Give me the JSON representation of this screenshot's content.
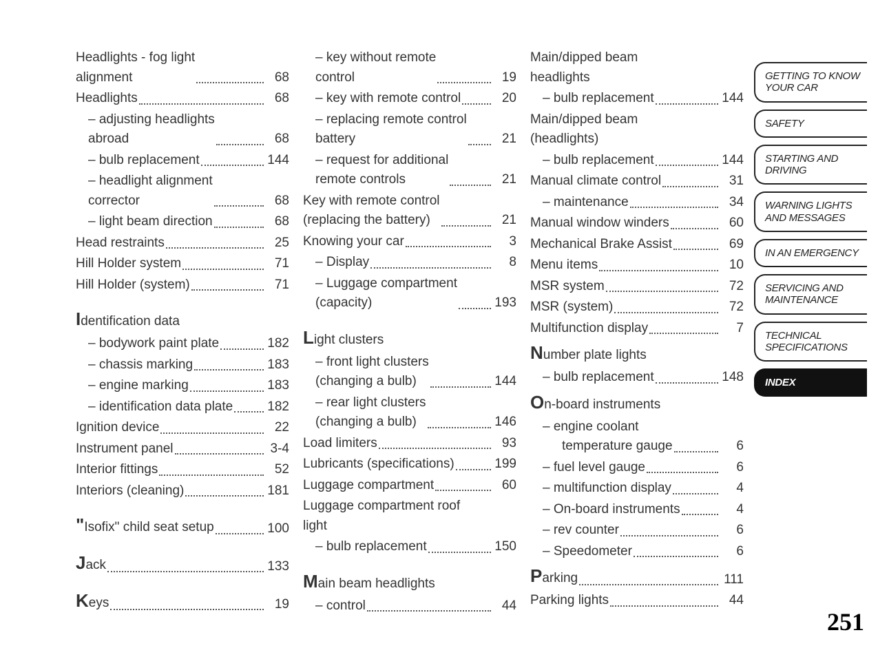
{
  "page_number": "251",
  "tabs": [
    {
      "label": "GETTING TO KNOW YOUR CAR",
      "active": false
    },
    {
      "label": "SAFETY",
      "active": false
    },
    {
      "label": "STARTING AND DRIVING",
      "active": false
    },
    {
      "label": "WARNING LIGHTS AND MESSAGES",
      "active": false
    },
    {
      "label": "IN AN EMERGENCY",
      "active": false
    },
    {
      "label": "SERVICING AND MAINTENANCE",
      "active": false
    },
    {
      "label": "TECHNICAL SPECIFICATIONS",
      "active": false
    },
    {
      "label": "INDEX",
      "active": true
    }
  ],
  "col1": [
    {
      "label": "Headlights - fog light\nalignment",
      "page": "68",
      "indent": 0
    },
    {
      "label": "Headlights",
      "page": "68",
      "indent": 0
    },
    {
      "label": "– adjusting headlights\nabroad",
      "page": "68",
      "indent": 1
    },
    {
      "label": "– bulb replacement",
      "page": "144",
      "indent": 1
    },
    {
      "label": "– headlight alignment\ncorrector",
      "page": "68",
      "indent": 1
    },
    {
      "label": "– light beam direction",
      "page": "68",
      "indent": 1
    },
    {
      "label": "Head restraints",
      "page": "25",
      "indent": 0
    },
    {
      "label": "Hill Holder system",
      "page": "71",
      "indent": 0
    },
    {
      "label": "Hill Holder (system)",
      "page": "71",
      "indent": 0
    },
    {
      "spacer": true
    },
    {
      "bigLetter": "I",
      "rest": "dentification data",
      "heading": true
    },
    {
      "label": "– bodywork paint plate",
      "page": "182",
      "indent": 1
    },
    {
      "label": "– chassis marking",
      "page": "183",
      "indent": 1
    },
    {
      "label": "– engine marking",
      "page": "183",
      "indent": 1
    },
    {
      "label": "– identification data plate",
      "page": "182",
      "indent": 1
    },
    {
      "label": "Ignition device",
      "page": "22",
      "indent": 0
    },
    {
      "label": "Instrument panel",
      "page": "3-4",
      "indent": 0
    },
    {
      "label": "Interior fittings",
      "page": "52",
      "indent": 0
    },
    {
      "label": "Interiors (cleaning)",
      "page": "181",
      "indent": 0
    },
    {
      "spacer": true
    },
    {
      "bigLetter": "\"",
      "rest": "Isofix\" child seat setup",
      "page": "100",
      "indent": 0
    },
    {
      "spacer": true
    },
    {
      "bigLetter": "J",
      "rest": "ack",
      "page": "133",
      "indent": 0
    },
    {
      "spacer": true
    },
    {
      "bigLetter": "K",
      "rest": "eys",
      "page": "19",
      "indent": 0,
      "noDots": true
    }
  ],
  "col2": [
    {
      "label": "– key without remote\ncontrol",
      "page": "19",
      "indent": 1
    },
    {
      "label": "– key with remote control",
      "page": "20",
      "indent": 1
    },
    {
      "label": "– replacing remote control\nbattery",
      "page": "21",
      "indent": 1
    },
    {
      "label": "– request for additional\nremote controls",
      "page": "21",
      "indent": 1
    },
    {
      "label": "Key with remote control\n(replacing the battery)",
      "page": "21",
      "indent": 0
    },
    {
      "label": "Knowing your car",
      "page": "3",
      "indent": 0
    },
    {
      "label": "– Display",
      "page": "8",
      "indent": 1
    },
    {
      "label": "– Luggage compartment\n(capacity)",
      "page": "193",
      "indent": 1
    },
    {
      "spacer": true
    },
    {
      "bigLetter": "L",
      "rest": "ight clusters",
      "heading": true
    },
    {
      "label": "– front light clusters\n(changing a bulb)",
      "page": "144",
      "indent": 1
    },
    {
      "label": "– rear light clusters\n(changing a bulb)",
      "page": "146",
      "indent": 1
    },
    {
      "label": "Load limiters",
      "page": "93",
      "indent": 0
    },
    {
      "label": "Lubricants (specifications)",
      "page": "199",
      "indent": 0
    },
    {
      "label": "Luggage compartment",
      "page": "60",
      "indent": 0
    },
    {
      "label": "Luggage compartment roof\nlight",
      "heading": true,
      "indent": 0
    },
    {
      "label": "– bulb replacement",
      "page": "150",
      "indent": 1
    },
    {
      "spacer": true
    },
    {
      "bigLetter": "M",
      "rest": "ain beam headlights",
      "heading": true
    },
    {
      "label": "– control",
      "page": "44",
      "indent": 1
    }
  ],
  "col3": [
    {
      "label": "Main/dipped beam\nheadlights",
      "heading": true,
      "indent": 0
    },
    {
      "label": "– bulb replacement",
      "page": "144",
      "indent": 1
    },
    {
      "label": "Main/dipped beam\n(headlights)",
      "heading": true,
      "indent": 0
    },
    {
      "label": "– bulb replacement",
      "page": "144",
      "indent": 1
    },
    {
      "label": "Manual climate control",
      "page": "31",
      "indent": 0
    },
    {
      "label": "– maintenance",
      "page": "34",
      "indent": 1
    },
    {
      "label": "Manual window winders",
      "page": "60",
      "indent": 0
    },
    {
      "label": "Mechanical Brake Assist",
      "page": "69",
      "indent": 0
    },
    {
      "label": "Menu items",
      "page": "10",
      "indent": 0
    },
    {
      "label": "MSR system",
      "page": "72",
      "indent": 0
    },
    {
      "label": "MSR (system)",
      "page": "72",
      "indent": 0
    },
    {
      "label": "Multifunction display",
      "page": "7",
      "indent": 0
    },
    {
      "bigLetter": "N",
      "rest": "umber plate lights",
      "heading": true
    },
    {
      "label": "– bulb replacement",
      "page": "148",
      "indent": 1
    },
    {
      "bigLetter": "O",
      "rest": "n-board instruments",
      "heading": true
    },
    {
      "label": "– engine coolant\ntemperature gauge",
      "page": "6",
      "indent": 1,
      "hang": true
    },
    {
      "label": "– fuel level gauge",
      "page": "6",
      "indent": 1
    },
    {
      "label": "– multifunction display",
      "page": "4",
      "indent": 1
    },
    {
      "label": "– On-board instruments",
      "page": "4",
      "indent": 1
    },
    {
      "label": "– rev counter",
      "page": "6",
      "indent": 1
    },
    {
      "label": "– Speedometer",
      "page": "6",
      "indent": 1
    },
    {
      "bigLetter": "P",
      "rest": "arking",
      "page": "111",
      "indent": 0
    },
    {
      "label": "Parking lights",
      "page": "44",
      "indent": 0
    }
  ]
}
